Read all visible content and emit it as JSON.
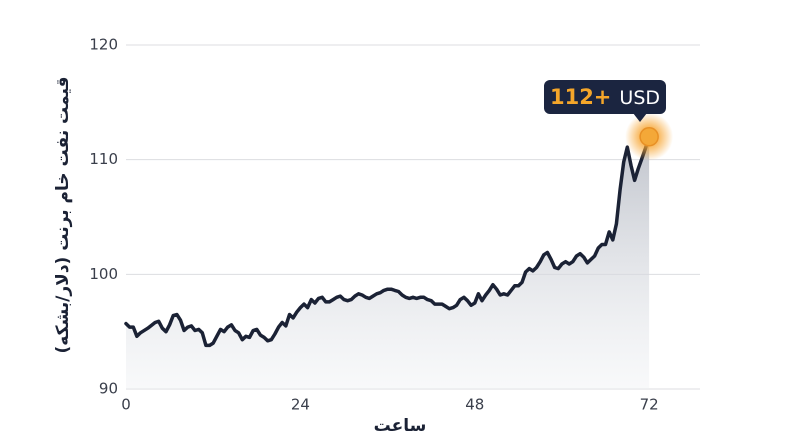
{
  "chart_data": {
    "type": "line",
    "y_label": "قیمت نفت خام برنت (دلار/بشکه)",
    "x_label": "ساعت",
    "annotation": {
      "value_text": "112+",
      "unit_text": "USD"
    },
    "color": "#1b2235",
    "marker_color": "#f4a838",
    "x": [
      0,
      0.5,
      1,
      1.5,
      2,
      3,
      4,
      4.5,
      5,
      5.5,
      6,
      6.5,
      7,
      7.5,
      8,
      8.5,
      9,
      9.5,
      10,
      10.5,
      11,
      11.5,
      12,
      12.5,
      13,
      13.5,
      14,
      14.5,
      15,
      15.5,
      16,
      16.5,
      17,
      17.5,
      18,
      18.5,
      19,
      19.5,
      20,
      20.5,
      21,
      21.5,
      22,
      22.5,
      23,
      23.5,
      24,
      24.5,
      25,
      25.5,
      26,
      26.5,
      27,
      27.5,
      28,
      28.5,
      29,
      29.5,
      30,
      30.5,
      31,
      31.5,
      32,
      32.5,
      33,
      33.5,
      34,
      34.5,
      35,
      35.5,
      36,
      36.5,
      37,
      37.5,
      38,
      38.5,
      39,
      39.5,
      40,
      40.5,
      41,
      41.5,
      42,
      42.5,
      43,
      43.5,
      44,
      44.5,
      45,
      45.5,
      46,
      46.5,
      47,
      47.5,
      48,
      48.5,
      49,
      49.5,
      50,
      50.5,
      51,
      51.5,
      52,
      52.5,
      53,
      53.5,
      54,
      54.5,
      55,
      55.5,
      56,
      56.5,
      57,
      57.5,
      58,
      58.5,
      59,
      59.5,
      60,
      60.5,
      61,
      61.5,
      62,
      62.5,
      63,
      63.5,
      64,
      64.5,
      65,
      65.5,
      66,
      66.5,
      67,
      67.5,
      68,
      68.5,
      69,
      69.5,
      70,
      70.5,
      71,
      71.5,
      72
    ],
    "values": [
      95.7,
      95.4,
      95.4,
      94.6,
      94.9,
      95.3,
      95.8,
      95.9,
      95.3,
      95.0,
      95.6,
      96.4,
      96.5,
      96.0,
      95.1,
      95.4,
      95.5,
      95.1,
      95.2,
      94.9,
      93.8,
      93.8,
      94.0,
      94.6,
      95.2,
      95.0,
      95.4,
      95.6,
      95.1,
      94.9,
      94.3,
      94.6,
      94.5,
      95.1,
      95.2,
      94.7,
      94.5,
      94.2,
      94.3,
      94.8,
      95.4,
      95.8,
      95.5,
      96.5,
      96.2,
      96.7,
      97.1,
      97.4,
      97.1,
      97.8,
      97.5,
      97.9,
      98.0,
      97.6,
      97.6,
      97.8,
      98.0,
      98.1,
      97.8,
      97.7,
      97.8,
      98.1,
      98.3,
      98.2,
      98.0,
      97.9,
      98.1,
      98.3,
      98.4,
      98.6,
      98.7,
      98.7,
      98.6,
      98.5,
      98.2,
      98.0,
      97.9,
      98.0,
      97.9,
      98.0,
      98.0,
      97.8,
      97.7,
      97.4,
      97.4,
      97.4,
      97.2,
      97.0,
      97.1,
      97.3,
      97.8,
      98.0,
      97.7,
      97.3,
      97.5,
      98.3,
      97.7,
      98.2,
      98.6,
      99.1,
      98.7,
      98.2,
      98.3,
      98.2,
      98.6,
      99.0,
      99.0,
      99.3,
      100.2,
      100.5,
      100.3,
      100.6,
      101.1,
      101.7,
      101.9,
      101.3,
      100.6,
      100.5,
      100.9,
      101.1,
      100.9,
      101.1,
      101.6,
      101.8,
      101.5,
      101.0,
      101.3,
      101.6,
      102.3,
      102.6,
      102.6,
      103.7,
      103.0,
      104.4,
      107.4,
      109.8,
      111.1,
      109.5,
      108.2,
      109.2,
      110.1,
      111.0,
      112.0
    ],
    "xlim": [
      0,
      79
    ],
    "xticks": [
      0,
      24,
      48,
      72
    ],
    "ylim": [
      90,
      120
    ],
    "yticks": [
      90,
      100,
      110,
      120
    ],
    "grid": true
  }
}
